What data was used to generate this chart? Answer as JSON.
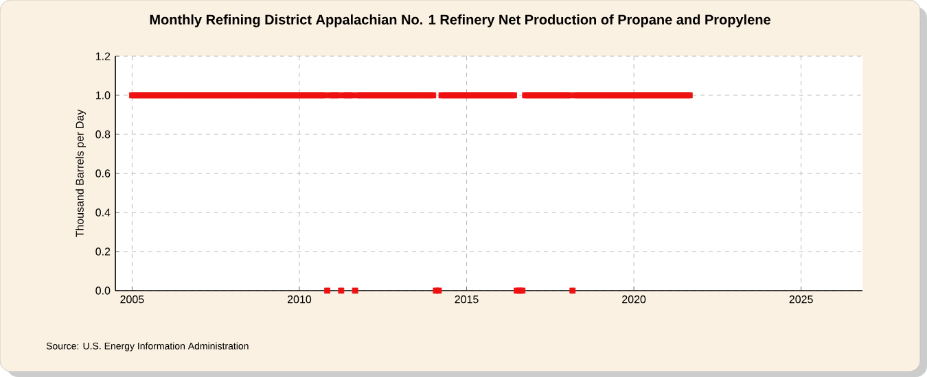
{
  "chart_data": {
    "type": "scatter",
    "title": "Monthly Refining District Appalachian No. 1 Refinery Net Production of Propane and Propylene",
    "ylabel": "Thousand Barrels per Day",
    "annotations": [
      "Source: U.S. Energy Information Administration"
    ],
    "marker": "square",
    "grid": true,
    "xlim": [
      "2004-07",
      "2026-11"
    ],
    "xticks": [
      "2005",
      "2010",
      "2015",
      "2020",
      "2025"
    ],
    "ylim": [
      0,
      1.2
    ],
    "yticks": [
      {
        "value": 0,
        "label": "0.0"
      },
      {
        "value": 0.2,
        "label": "0.2"
      },
      {
        "value": 0.4,
        "label": "0.4"
      },
      {
        "value": 0.6,
        "label": "0.6"
      },
      {
        "value": 0.8,
        "label": "0.8"
      },
      {
        "value": 1.0,
        "label": "1.0"
      },
      {
        "value": 1.2,
        "label": "1.2"
      }
    ],
    "series": [
      {
        "color": "#ee1111",
        "x": [
          "2005-01",
          "2005-02",
          "2005-03",
          "2005-04",
          "2005-05",
          "2005-06",
          "2005-07",
          "2005-08",
          "2005-09",
          "2005-10",
          "2005-11",
          "2005-12",
          "2006-01",
          "2006-02",
          "2006-03",
          "2006-04",
          "2006-05",
          "2006-06",
          "2006-07",
          "2006-08",
          "2006-09",
          "2006-10",
          "2006-11",
          "2006-12",
          "2007-01",
          "2007-02",
          "2007-03",
          "2007-04",
          "2007-05",
          "2007-06",
          "2007-07",
          "2007-08",
          "2007-09",
          "2007-10",
          "2007-11",
          "2007-12",
          "2008-01",
          "2008-02",
          "2008-03",
          "2008-04",
          "2008-05",
          "2008-06",
          "2008-07",
          "2008-08",
          "2008-09",
          "2008-10",
          "2008-11",
          "2008-12",
          "2009-01",
          "2009-02",
          "2009-03",
          "2009-04",
          "2009-05",
          "2009-06",
          "2009-07",
          "2009-08",
          "2009-09",
          "2009-10",
          "2009-11",
          "2009-12",
          "2010-01",
          "2010-02",
          "2010-03",
          "2010-04",
          "2010-05",
          "2010-06",
          "2010-07",
          "2010-08",
          "2010-09",
          "2010-10",
          "2010-11",
          "2010-12",
          "2011-01",
          "2011-02",
          "2011-03",
          "2011-04",
          "2011-05",
          "2011-06",
          "2011-07",
          "2011-08",
          "2011-09",
          "2011-10",
          "2011-11",
          "2011-12",
          "2012-01",
          "2012-02",
          "2012-03",
          "2012-04",
          "2012-05",
          "2012-06",
          "2012-07",
          "2012-08",
          "2012-09",
          "2012-10",
          "2012-11",
          "2012-12",
          "2013-01",
          "2013-02",
          "2013-03",
          "2013-04",
          "2013-05",
          "2013-06",
          "2013-07",
          "2013-08",
          "2013-09",
          "2013-10",
          "2013-11",
          "2013-12",
          "2014-01",
          "2014-02",
          "2014-03",
          "2014-04",
          "2014-05",
          "2014-06",
          "2014-07",
          "2014-08",
          "2014-09",
          "2014-10",
          "2014-11",
          "2014-12",
          "2015-01",
          "2015-02",
          "2015-03",
          "2015-04",
          "2015-05",
          "2015-06",
          "2015-07",
          "2015-08",
          "2015-09",
          "2015-10",
          "2015-11",
          "2015-12",
          "2016-01",
          "2016-02",
          "2016-03",
          "2016-04",
          "2016-05",
          "2016-06",
          "2016-07",
          "2016-08",
          "2016-09",
          "2016-10",
          "2016-11",
          "2016-12",
          "2017-01",
          "2017-02",
          "2017-03",
          "2017-04",
          "2017-05",
          "2017-06",
          "2017-07",
          "2017-08",
          "2017-09",
          "2017-10",
          "2017-11",
          "2017-12",
          "2018-01",
          "2018-02",
          "2018-03",
          "2018-04",
          "2018-05",
          "2018-06",
          "2018-07",
          "2018-08",
          "2018-09",
          "2018-10",
          "2018-11",
          "2018-12",
          "2019-01",
          "2019-02",
          "2019-03",
          "2019-04",
          "2019-05",
          "2019-06",
          "2019-07",
          "2019-08",
          "2019-09",
          "2019-10",
          "2019-11",
          "2019-12",
          "2020-01",
          "2020-02",
          "2020-03",
          "2020-04",
          "2020-05",
          "2020-06",
          "2020-07",
          "2020-08",
          "2020-09",
          "2020-10",
          "2020-11",
          "2020-12",
          "2021-01",
          "2021-02",
          "2021-03",
          "2021-04",
          "2021-05",
          "2021-06",
          "2021-07",
          "2021-08",
          "2021-09"
        ],
        "values": [
          1,
          1,
          1,
          1,
          1,
          1,
          1,
          1,
          1,
          1,
          1,
          1,
          1,
          1,
          1,
          1,
          1,
          1,
          1,
          1,
          1,
          1,
          1,
          1,
          1,
          1,
          1,
          1,
          1,
          1,
          1,
          1,
          1,
          1,
          1,
          1,
          1,
          1,
          1,
          1,
          1,
          1,
          1,
          1,
          1,
          1,
          1,
          1,
          1,
          1,
          1,
          1,
          1,
          1,
          1,
          1,
          1,
          1,
          1,
          1,
          1,
          1,
          1,
          1,
          1,
          1,
          1,
          1,
          1,
          1,
          0,
          1,
          1,
          1,
          1,
          0,
          1,
          1,
          1,
          1,
          0,
          1,
          1,
          1,
          1,
          1,
          1,
          1,
          1,
          1,
          1,
          1,
          1,
          1,
          1,
          1,
          1,
          1,
          1,
          1,
          1,
          1,
          1,
          1,
          1,
          1,
          1,
          1,
          1,
          0,
          0,
          1,
          1,
          1,
          1,
          1,
          1,
          1,
          1,
          1,
          1,
          1,
          1,
          1,
          1,
          1,
          1,
          1,
          1,
          1,
          1,
          1,
          1,
          1,
          1,
          1,
          1,
          1,
          0,
          0,
          0,
          1,
          1,
          1,
          1,
          1,
          1,
          1,
          1,
          1,
          1,
          1,
          1,
          1,
          1,
          1,
          1,
          1,
          0,
          1,
          1,
          1,
          1,
          1,
          1,
          1,
          1,
          1,
          1,
          1,
          1,
          1,
          1,
          1,
          1,
          1,
          1,
          1,
          1,
          1,
          1,
          1,
          1,
          1,
          1,
          1,
          1,
          1,
          1,
          1,
          1,
          1,
          1,
          1,
          1,
          1,
          1,
          1,
          1,
          1,
          1
        ]
      }
    ]
  }
}
